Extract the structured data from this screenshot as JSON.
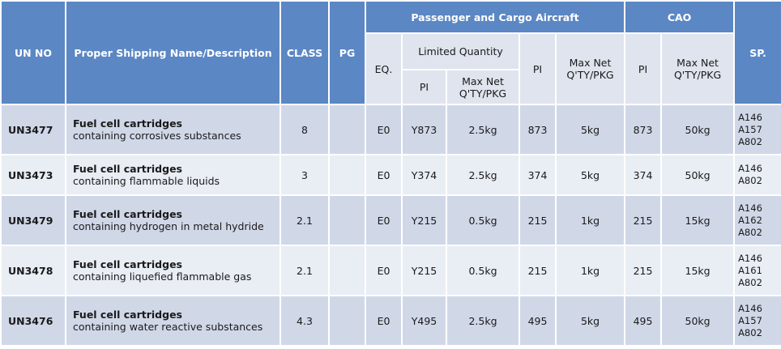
{
  "table": {
    "headers": {
      "un_no": "UN NO",
      "name": "Proper Shipping Name/Description",
      "class": "CLASS",
      "pg": "PG",
      "passenger": "Passenger and Cargo Aircraft",
      "cao": "CAO",
      "sp": "SP.",
      "eq": "EQ.",
      "limited_quantity": "Limited Quantity",
      "lq_pi": "PI",
      "lq_max": "Max Net Q'TY/PKG",
      "pi": "PI",
      "max": "Max Net Q'TY/PKG",
      "cao_pi": "PI",
      "cao_max": "Max Net Q'TY/PKG"
    },
    "rows": [
      {
        "un": "UN3477",
        "name": "Fuel cell cartridges",
        "desc": "containing corrosives substances",
        "class": "8",
        "eq": "E0",
        "lq_pi": "Y873",
        "lq_max": "2.5kg",
        "pi": "873",
        "max": "5kg",
        "cao_pi": "873",
        "cao_max": "50kg",
        "sp": [
          "A146",
          "A157",
          "A802"
        ]
      },
      {
        "un": "UN3473",
        "name": "Fuel cell cartridges",
        "desc": "containing flammable  liquids",
        "class": "3",
        "eq": "E0",
        "lq_pi": "Y374",
        "lq_max": "2.5kg",
        "pi": "374",
        "max": "5kg",
        "cao_pi": "374",
        "cao_max": "50kg",
        "sp": [
          "A146",
          "A802"
        ]
      },
      {
        "un": "UN3479",
        "name": "Fuel cell cartridges",
        "desc": "containing hydrogen  in metal hydride",
        "class": "2.1",
        "eq": "E0",
        "lq_pi": "Y215",
        "lq_max": "0.5kg",
        "pi": "215",
        "max": "1kg",
        "cao_pi": "215",
        "cao_max": "15kg",
        "sp": [
          "A146",
          "A162",
          "A802"
        ]
      },
      {
        "un": "UN3478",
        "name": "Fuel cell cartridges",
        "desc": "containing liquefied flammable gas",
        "class": "2.1",
        "eq": "E0",
        "lq_pi": "Y215",
        "lq_max": "0.5kg",
        "pi": "215",
        "max": "1kg",
        "cao_pi": "215",
        "cao_max": "15kg",
        "sp": [
          "A146",
          "A161",
          "A802"
        ]
      },
      {
        "un": "UN3476",
        "name": "Fuel cell cartridges",
        "desc": "containing water reactive substances",
        "class": "4.3",
        "eq": "E0",
        "lq_pi": "Y495",
        "lq_max": "2.5kg",
        "pi": "495",
        "max": "5kg",
        "cao_pi": "495",
        "cao_max": "50kg",
        "sp": [
          "A146",
          "A157",
          "A802"
        ]
      }
    ]
  }
}
